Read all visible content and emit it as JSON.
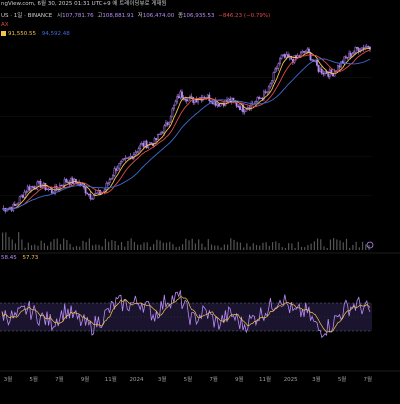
{
  "header": {
    "source_line": "ngView.com, 6월 30, 2025 01:31 UTC+9 에 트레이딩뷰로 게재됨",
    "symbol_line": "US · 1일 · BINANCE",
    "ohlc": {
      "open_label": "시",
      "open": "107,781.76",
      "high_label": "고",
      "high": "108,881.91",
      "low_label": "저",
      "low": "106,474.00",
      "close_label": "종",
      "close": "106,935.53",
      "change": "−846.23 (−0.79%)"
    },
    "indicator_label": "AX",
    "ma_values": [
      "91,550.55",
      "94,592.48"
    ]
  },
  "rsi_values": [
    "58.45",
    "57.73"
  ],
  "colors": {
    "background": "#000000",
    "candle": "#b98cf5",
    "ma_fast": "#f2c649",
    "ma_mid": "#e14b4b",
    "ma_slow": "#3e6bd6",
    "rsi_line": "#b98cf5",
    "rsi_signal": "#f2c649",
    "rsi_band": "#3a2d66",
    "volume": "#555555",
    "text": "#c8c8c8"
  },
  "chart_data": [
    {
      "type": "candlestick",
      "x": [
        "2023-01",
        "2023-02",
        "2023-03",
        "2023-04",
        "2023-05",
        "2023-06",
        "2023-07",
        "2023-08",
        "2023-09",
        "2023-10",
        "2023-11",
        "2023-12",
        "2024-01",
        "2024-02",
        "2024-03",
        "2024-04",
        "2024-05",
        "2024-06",
        "2024-07",
        "2024-08",
        "2024-09",
        "2024-10",
        "2024-11",
        "2024-12",
        "2025-01",
        "2025-02",
        "2025-03",
        "2025-04",
        "2025-05",
        "2025-06"
      ],
      "close": [
        23000,
        23500,
        28000,
        29000,
        27000,
        30000,
        29500,
        26000,
        27000,
        34000,
        37000,
        42000,
        43000,
        51000,
        68000,
        64000,
        67000,
        62000,
        64000,
        59000,
        63000,
        70000,
        96000,
        94000,
        102000,
        85000,
        82000,
        94000,
        104000,
        107000
      ],
      "x_tick_labels": [
        "3월",
        "5월",
        "7월",
        "9월",
        "11월",
        "2024",
        "3월",
        "5월",
        "7월",
        "9월",
        "11월",
        "2025",
        "3월",
        "5월",
        "7월"
      ],
      "overlays": [
        "ma_fast",
        "ma_mid",
        "ma_slow"
      ],
      "volume": true
    },
    {
      "type": "line",
      "name": "RSI",
      "x": [
        "2023-01",
        "2023-02",
        "2023-03",
        "2023-04",
        "2023-05",
        "2023-06",
        "2023-07",
        "2023-08",
        "2023-09",
        "2023-10",
        "2023-11",
        "2023-12",
        "2024-01",
        "2024-02",
        "2024-03",
        "2024-04",
        "2024-05",
        "2024-06",
        "2024-07",
        "2024-08",
        "2024-09",
        "2024-10",
        "2024-11",
        "2024-12",
        "2025-01",
        "2025-02",
        "2025-03",
        "2025-04",
        "2025-05",
        "2025-06"
      ],
      "values": [
        55,
        48,
        62,
        50,
        42,
        60,
        46,
        35,
        50,
        70,
        68,
        72,
        52,
        75,
        78,
        45,
        58,
        40,
        55,
        38,
        50,
        62,
        80,
        55,
        58,
        30,
        40,
        62,
        68,
        58
      ],
      "ylim": [
        0,
        100
      ],
      "bands": [
        30,
        70
      ]
    }
  ]
}
